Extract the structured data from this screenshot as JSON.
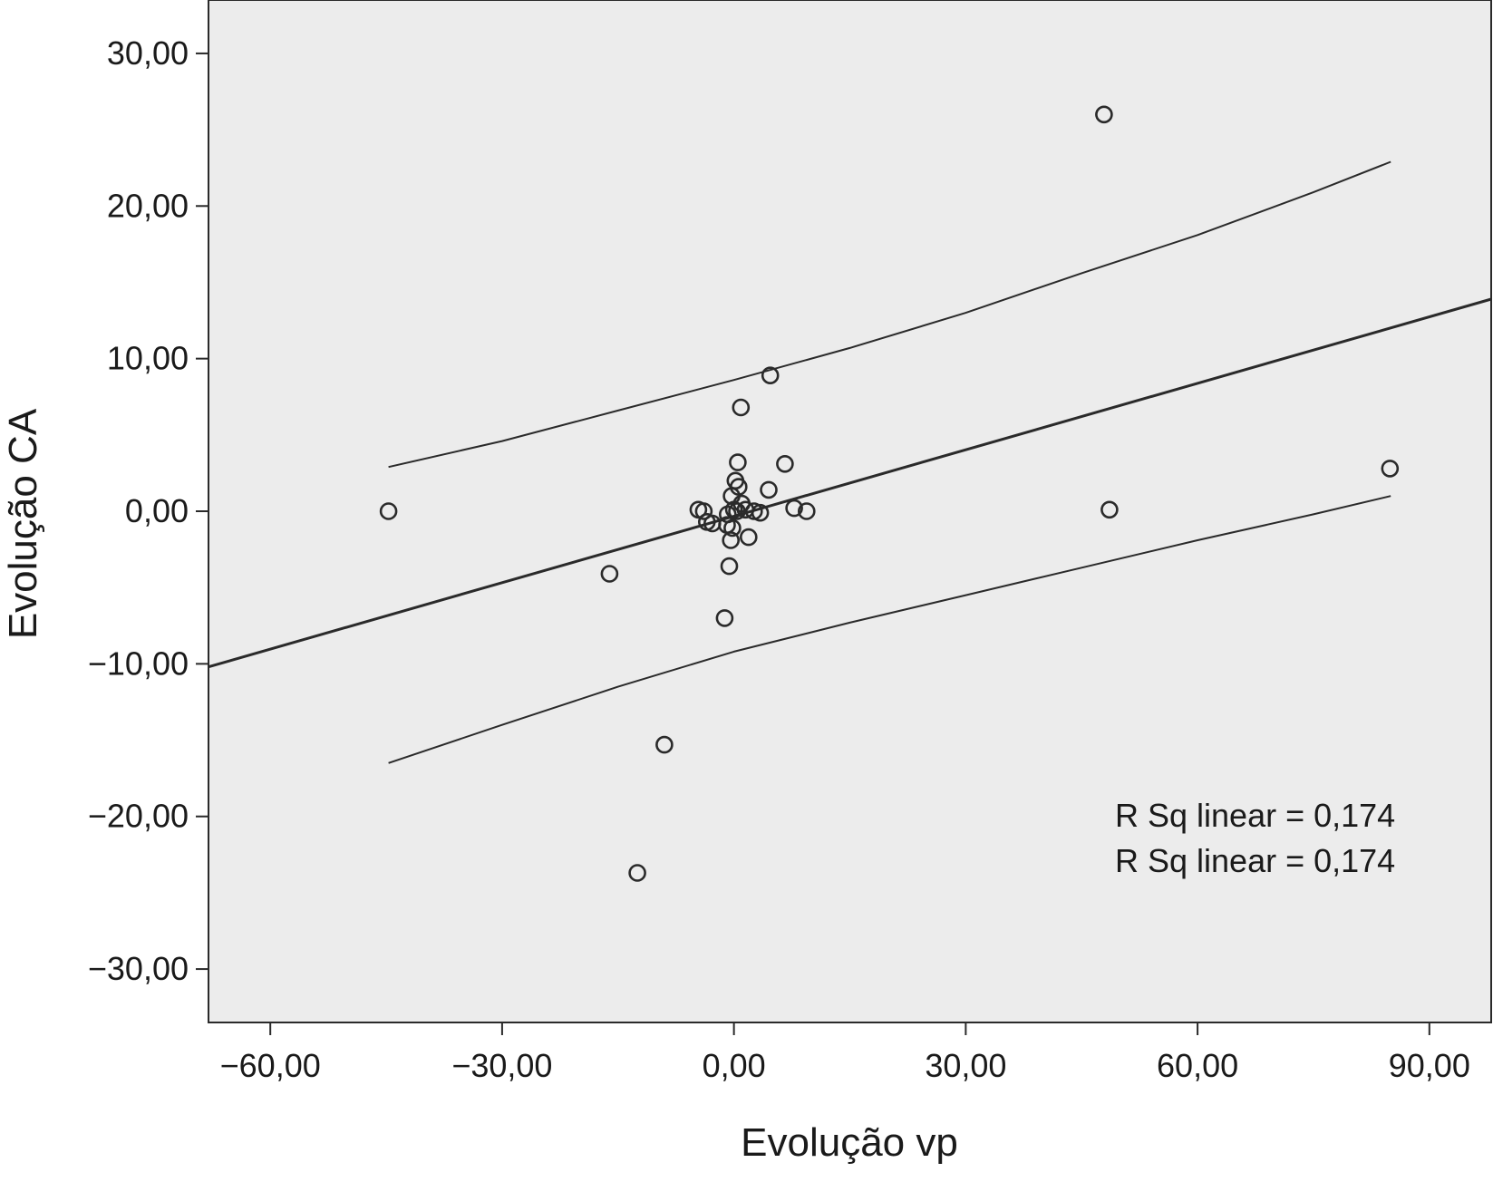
{
  "chart_data": {
    "type": "scatter",
    "xlabel": "Evolução vp",
    "ylabel": "Evolução CA",
    "xlim": [
      -68,
      98
    ],
    "ylim": [
      -33.5,
      33.5
    ],
    "x_ticks": [
      {
        "value": -60,
        "label": "−60,00"
      },
      {
        "value": -30,
        "label": "−30,00"
      },
      {
        "value": 0,
        "label": "0,00"
      },
      {
        "value": 30,
        "label": "30,00"
      },
      {
        "value": 60,
        "label": "60,00"
      },
      {
        "value": 90,
        "label": "90,00"
      }
    ],
    "y_ticks": [
      {
        "value": 30,
        "label": "30,00"
      },
      {
        "value": 20,
        "label": "20,00"
      },
      {
        "value": 10,
        "label": "10,00"
      },
      {
        "value": 0,
        "label": "0,00"
      },
      {
        "value": -10,
        "label": "−10,00"
      },
      {
        "value": -20,
        "label": "−20,00"
      },
      {
        "value": -30,
        "label": "−30,00"
      }
    ],
    "grid": false,
    "colors": {
      "plot_background": "#ececec",
      "line": "#2a2a2a",
      "marker": "#2a2a2a"
    },
    "points": [
      {
        "x": 47.9,
        "y": 26.0
      },
      {
        "x": 84.9,
        "y": 2.8
      },
      {
        "x": 48.6,
        "y": 0.1
      },
      {
        "x": -44.7,
        "y": 0.0
      },
      {
        "x": -16.1,
        "y": -4.1
      },
      {
        "x": -9.0,
        "y": -15.3
      },
      {
        "x": -12.5,
        "y": -23.7
      },
      {
        "x": 4.7,
        "y": 8.9
      },
      {
        "x": 0.9,
        "y": 6.8
      },
      {
        "x": 0.5,
        "y": 3.2
      },
      {
        "x": 6.6,
        "y": 3.1
      },
      {
        "x": 4.5,
        "y": 1.4
      },
      {
        "x": 0.2,
        "y": 2.0
      },
      {
        "x": 0.6,
        "y": 1.6
      },
      {
        "x": -0.3,
        "y": 1.0
      },
      {
        "x": 1.0,
        "y": 0.5
      },
      {
        "x": 0.0,
        "y": 0.1
      },
      {
        "x": 0.4,
        "y": 0.0
      },
      {
        "x": 1.5,
        "y": 0.1
      },
      {
        "x": -0.8,
        "y": -0.2
      },
      {
        "x": 2.6,
        "y": 0.0
      },
      {
        "x": 3.4,
        "y": -0.1
      },
      {
        "x": 7.8,
        "y": 0.2
      },
      {
        "x": 9.4,
        "y": 0.0
      },
      {
        "x": -4.6,
        "y": 0.1
      },
      {
        "x": -3.9,
        "y": 0.0
      },
      {
        "x": -3.5,
        "y": -0.7
      },
      {
        "x": -2.8,
        "y": -0.8
      },
      {
        "x": -0.9,
        "y": -0.9
      },
      {
        "x": -0.2,
        "y": -1.1
      },
      {
        "x": -0.4,
        "y": -1.9
      },
      {
        "x": 1.9,
        "y": -1.7
      },
      {
        "x": -0.6,
        "y": -3.6
      },
      {
        "x": -1.2,
        "y": -7.0
      }
    ],
    "fit_line": {
      "x": [
        -68,
        98
      ],
      "y": [
        -10.2,
        13.9
      ]
    },
    "ci_upper": {
      "x": [
        -44.7,
        -30,
        -15,
        0,
        15,
        30,
        45,
        60,
        75,
        85
      ],
      "y": [
        2.9,
        4.6,
        6.6,
        8.6,
        10.7,
        13.0,
        15.6,
        18.1,
        20.9,
        22.9
      ]
    },
    "ci_lower": {
      "x": [
        -44.7,
        -30,
        -15,
        0,
        15,
        30,
        45,
        60,
        75,
        85
      ],
      "y": [
        -16.5,
        -14.0,
        -11.5,
        -9.2,
        -7.3,
        -5.5,
        -3.7,
        -1.9,
        -0.2,
        1.0
      ]
    },
    "annotations": [
      "R Sq linear = 0,174",
      "R Sq linear = 0,174"
    ]
  }
}
